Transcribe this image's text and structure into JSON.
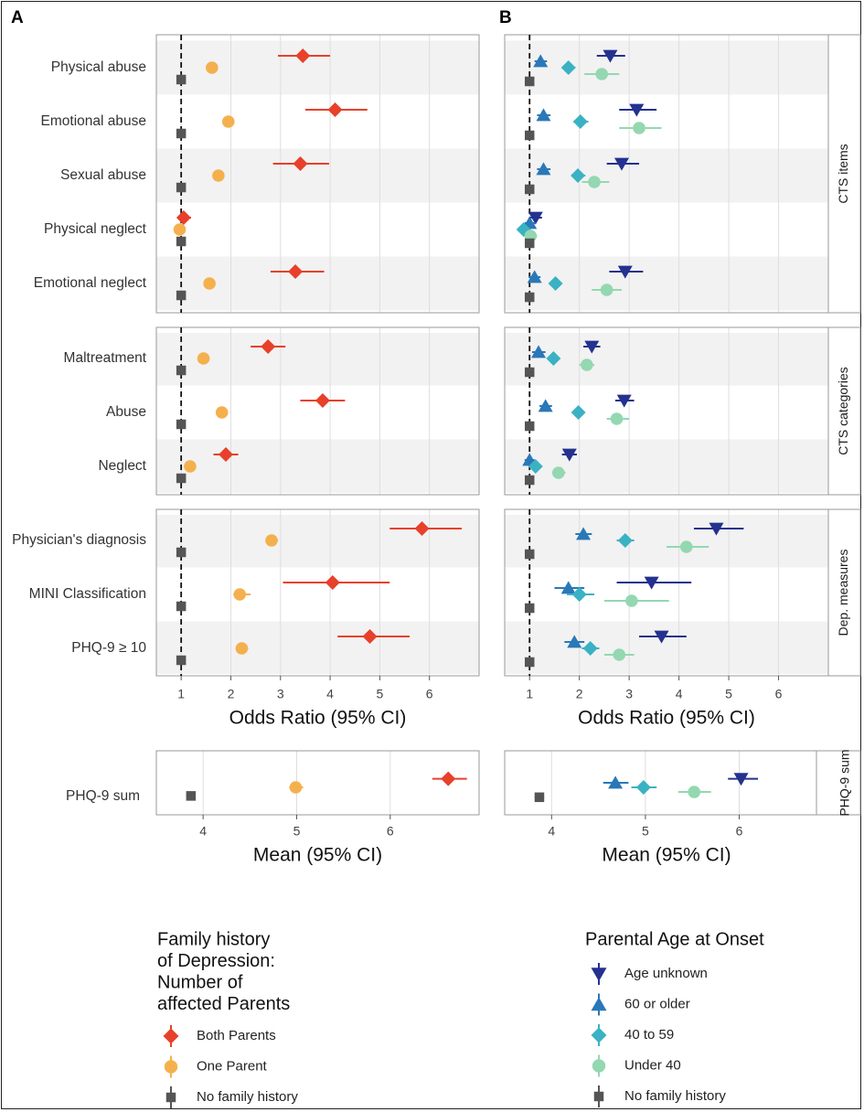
{
  "chart_data": {
    "type": "forest",
    "panel_labels": {
      "a": "A",
      "b": "B"
    },
    "rows": [
      "Physical abuse",
      "Emotional abuse",
      "Sexual abuse",
      "Physical neglect",
      "Emotional neglect",
      "Maltreatment",
      "Abuse",
      "Neglect",
      "Physician's diagnosis",
      "MINI Classification",
      "PHQ-9 ≥ 10"
    ],
    "groups": [
      {
        "label": "CTS items",
        "rows": [
          0,
          1,
          2,
          3,
          4
        ]
      },
      {
        "label": "CTS categories",
        "rows": [
          5,
          6,
          7
        ]
      },
      {
        "label": "Dep. measures",
        "rows": [
          8,
          9,
          10
        ]
      }
    ],
    "sum_row": "PHQ-9 sum",
    "sum_strip": "PHQ-9 sum",
    "or_axis": {
      "label": "Odds Ratio (95% CI)",
      "xlim": [
        0.5,
        7.0
      ],
      "ticks": [
        "1",
        "2",
        "3",
        "4",
        "5",
        "6"
      ],
      "reference_line": 1
    },
    "mean_axis": {
      "label": "Mean (95% CI)",
      "xlim": [
        3.5,
        6.95
      ],
      "ticks": [
        "4",
        "5",
        "6"
      ]
    },
    "panel_a": {
      "legend_title": [
        "Family history",
        "of Depression:",
        "Number of",
        "affected Parents"
      ],
      "series": [
        {
          "name": "Both Parents",
          "color": "#e8402a",
          "shape": "diamond",
          "or": [
            [
              3.45,
              2.95,
              4.0
            ],
            [
              4.1,
              3.5,
              4.75
            ],
            [
              3.4,
              2.85,
              3.98
            ],
            [
              1.05,
              0.93,
              1.2
            ],
            [
              3.3,
              2.8,
              3.88
            ],
            [
              2.75,
              2.4,
              3.1
            ],
            [
              3.85,
              3.4,
              4.3
            ],
            [
              1.9,
              1.65,
              2.15
            ],
            [
              5.85,
              5.2,
              6.65
            ],
            [
              4.05,
              3.05,
              5.2
            ],
            [
              4.8,
              4.15,
              5.6
            ]
          ],
          "mean": [
            6.62,
            6.45,
            6.82
          ]
        },
        {
          "name": "One Parent",
          "color": "#f5b04e",
          "shape": "circle",
          "or": [
            [
              1.62,
              1.55,
              1.7
            ],
            [
              1.95,
              1.85,
              2.05
            ],
            [
              1.75,
              1.65,
              1.85
            ],
            [
              0.97,
              0.93,
              1.02
            ],
            [
              1.57,
              1.5,
              1.65
            ],
            [
              1.45,
              1.4,
              1.5
            ],
            [
              1.82,
              1.75,
              1.9
            ],
            [
              1.18,
              1.12,
              1.24
            ],
            [
              2.82,
              2.7,
              2.95
            ],
            [
              2.18,
              2.05,
              2.4
            ],
            [
              2.22,
              2.1,
              2.35
            ]
          ],
          "mean": [
            4.99,
            4.92,
            5.07
          ]
        },
        {
          "name": "No family history",
          "color": "#555555",
          "shape": "square",
          "or": [
            [
              1,
              1,
              1
            ],
            [
              1,
              1,
              1
            ],
            [
              1,
              1,
              1
            ],
            [
              1,
              1,
              1
            ],
            [
              1,
              1,
              1
            ],
            [
              1,
              1,
              1
            ],
            [
              1,
              1,
              1
            ],
            [
              1,
              1,
              1
            ],
            [
              1,
              1,
              1
            ],
            [
              1,
              1,
              1
            ],
            [
              1,
              1,
              1
            ]
          ],
          "mean": [
            3.87,
            3.82,
            3.92
          ]
        }
      ]
    },
    "panel_b": {
      "legend_title": [
        "Parental Age at Onset"
      ],
      "series": [
        {
          "name": "Age unknown",
          "color": "#24318f",
          "shape": "triangle-down",
          "or": [
            [
              2.62,
              2.35,
              2.92
            ],
            [
              3.15,
              2.8,
              3.55
            ],
            [
              2.85,
              2.55,
              3.2
            ],
            [
              1.12,
              1.0,
              1.25
            ],
            [
              2.92,
              2.6,
              3.28
            ],
            [
              2.25,
              2.08,
              2.42
            ],
            [
              2.9,
              2.72,
              3.1
            ],
            [
              1.8,
              1.65,
              1.95
            ],
            [
              4.75,
              4.3,
              5.3
            ],
            [
              3.45,
              2.75,
              4.25
            ],
            [
              3.65,
              3.2,
              4.15
            ]
          ],
          "mean": [
            6.02,
            5.88,
            6.2
          ]
        },
        {
          "name": "60 or older",
          "color": "#2a78b8",
          "shape": "triangle-up",
          "or": [
            [
              1.22,
              1.1,
              1.35
            ],
            [
              1.28,
              1.15,
              1.42
            ],
            [
              1.28,
              1.15,
              1.42
            ],
            [
              1.0,
              0.9,
              1.12
            ],
            [
              1.1,
              0.98,
              1.22
            ],
            [
              1.18,
              1.05,
              1.32
            ],
            [
              1.32,
              1.2,
              1.45
            ],
            [
              1.0,
              0.9,
              1.1
            ],
            [
              2.08,
              1.92,
              2.25
            ],
            [
              1.78,
              1.5,
              2.1
            ],
            [
              1.9,
              1.7,
              2.1
            ]
          ],
          "mean": [
            4.68,
            4.55,
            4.82
          ]
        },
        {
          "name": "40 to 59",
          "color": "#3ab2c4",
          "shape": "diamond",
          "or": [
            [
              1.78,
              1.65,
              1.92
            ],
            [
              2.02,
              1.88,
              2.18
            ],
            [
              1.97,
              1.84,
              2.12
            ],
            [
              0.88,
              0.8,
              0.98
            ],
            [
              1.52,
              1.4,
              1.65
            ],
            [
              1.48,
              1.4,
              1.56
            ],
            [
              1.98,
              1.9,
              2.06
            ],
            [
              1.12,
              1.02,
              1.22
            ],
            [
              2.92,
              2.75,
              3.1
            ],
            [
              2.0,
              1.75,
              2.3
            ],
            [
              2.22,
              2.05,
              2.4
            ]
          ],
          "mean": [
            4.98,
            4.85,
            5.12
          ]
        },
        {
          "name": "Under 40",
          "color": "#93d8b0",
          "shape": "circle",
          "or": [
            [
              2.45,
              2.1,
              2.8
            ],
            [
              3.2,
              2.8,
              3.65
            ],
            [
              2.3,
              2.05,
              2.6
            ],
            [
              1.02,
              0.9,
              1.15
            ],
            [
              2.55,
              2.25,
              2.85
            ],
            [
              2.15,
              2.0,
              2.3
            ],
            [
              2.75,
              2.55,
              3.0
            ],
            [
              1.58,
              1.45,
              1.72
            ],
            [
              4.15,
              3.75,
              4.6
            ],
            [
              3.05,
              2.5,
              3.8
            ],
            [
              2.8,
              2.5,
              3.1
            ]
          ],
          "mean": [
            5.52,
            5.35,
            5.7
          ]
        },
        {
          "name": "No family history",
          "color": "#555555",
          "shape": "square",
          "or": [
            [
              1,
              1,
              1
            ],
            [
              1,
              1,
              1
            ],
            [
              1,
              1,
              1
            ],
            [
              1,
              1,
              1
            ],
            [
              1,
              1,
              1
            ],
            [
              1,
              1,
              1
            ],
            [
              1,
              1,
              1
            ],
            [
              1,
              1,
              1
            ],
            [
              1,
              1,
              1
            ],
            [
              1,
              1,
              1
            ],
            [
              1,
              1,
              1
            ]
          ],
          "mean": [
            3.87,
            3.82,
            3.92
          ]
        }
      ]
    }
  }
}
